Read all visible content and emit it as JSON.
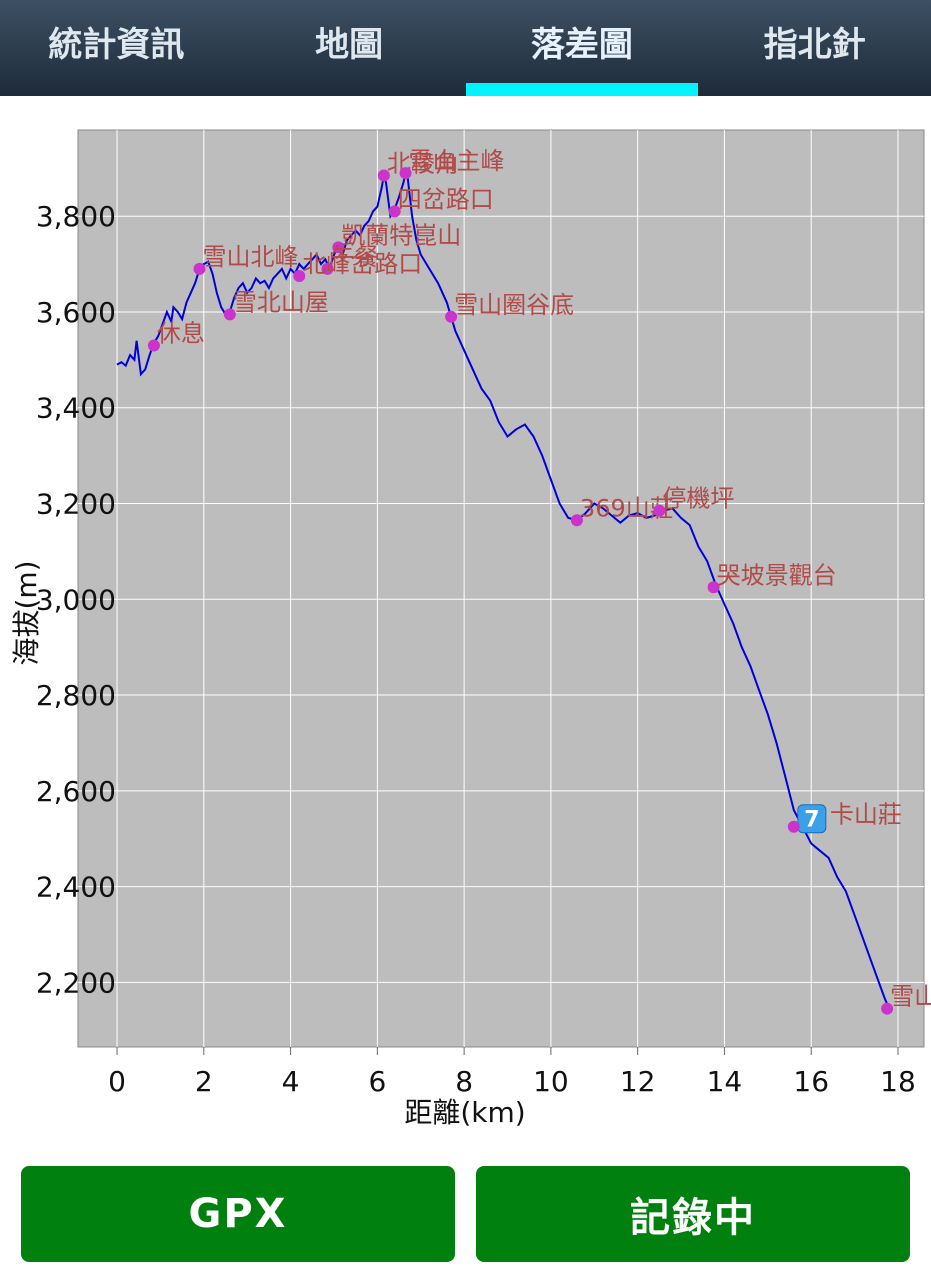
{
  "tabs": [
    {
      "label": "統計資訊",
      "active": false
    },
    {
      "label": "地圖",
      "active": false
    },
    {
      "label": "落差圖",
      "active": true
    },
    {
      "label": "指北針",
      "active": false
    }
  ],
  "colors": {
    "tab_indicator": "#00f4ff",
    "button": "#00800f",
    "plot_bg": "#bdbdbd",
    "line": "#0000dd",
    "marker": "#cc33cc",
    "marker_label": "#b24a4a"
  },
  "buttons": {
    "gpx": "GPX",
    "record": "記錄中"
  },
  "chart_data": {
    "type": "line",
    "xlabel": "距離(km)",
    "ylabel": "海拔(m)",
    "xlim": [
      -0.9,
      18.6
    ],
    "ylim": [
      2065,
      3980
    ],
    "xticks": [
      "0",
      "2",
      "4",
      "6",
      "8",
      "10",
      "12",
      "14",
      "16",
      "18"
    ],
    "yticks": [
      "2,200",
      "2,400",
      "2,600",
      "2,800",
      "3,000",
      "3,200",
      "3,400",
      "3,600",
      "3,800"
    ],
    "grid": true,
    "series": [
      {
        "x": [
          0.0,
          0.1,
          0.2,
          0.3,
          0.4,
          0.45,
          0.55,
          0.65,
          0.75,
          0.85,
          0.95,
          1.05,
          1.15,
          1.25,
          1.3,
          1.4,
          1.5,
          1.6,
          1.7,
          1.8,
          1.9,
          2.0,
          2.1,
          2.2,
          2.3,
          2.4,
          2.5,
          2.6,
          2.7,
          2.8,
          2.9,
          3.0,
          3.1,
          3.2,
          3.3,
          3.4,
          3.5,
          3.6,
          3.7,
          3.8,
          3.9,
          4.0,
          4.1,
          4.2,
          4.3,
          4.4,
          4.5,
          4.6,
          4.7,
          4.8,
          4.9,
          5.0,
          5.1,
          5.2,
          5.3,
          5.4,
          5.5,
          5.6,
          5.7,
          5.8,
          5.9,
          6.0,
          6.1,
          6.15,
          6.2,
          6.3,
          6.4,
          6.5,
          6.6,
          6.65,
          6.7,
          6.8,
          6.9,
          7.0,
          7.2,
          7.4,
          7.6,
          7.7,
          7.8,
          8.0,
          8.2,
          8.4,
          8.6,
          8.8,
          9.0,
          9.2,
          9.4,
          9.6,
          9.8,
          10.0,
          10.2,
          10.4,
          10.6,
          10.8,
          11.0,
          11.2,
          11.4,
          11.6,
          11.8,
          12.0,
          12.2,
          12.4,
          12.6,
          12.8,
          13.0,
          13.2,
          13.4,
          13.6,
          13.8,
          14.0,
          14.2,
          14.4,
          14.6,
          14.8,
          15.0,
          15.2,
          15.4,
          15.6,
          15.8,
          16.0,
          16.2,
          16.4,
          16.6,
          16.8,
          17.0,
          17.2,
          17.4,
          17.6,
          17.7,
          17.75
        ],
        "y": [
          3490,
          3495,
          3488,
          3510,
          3500,
          3540,
          3470,
          3480,
          3510,
          3535,
          3550,
          3575,
          3600,
          3580,
          3610,
          3600,
          3585,
          3620,
          3640,
          3660,
          3690,
          3700,
          3705,
          3680,
          3640,
          3610,
          3595,
          3600,
          3630,
          3650,
          3660,
          3640,
          3650,
          3670,
          3660,
          3665,
          3650,
          3670,
          3680,
          3690,
          3670,
          3690,
          3680,
          3700,
          3690,
          3700,
          3710,
          3720,
          3700,
          3710,
          3690,
          3720,
          3735,
          3720,
          3750,
          3760,
          3770,
          3760,
          3780,
          3790,
          3810,
          3820,
          3860,
          3885,
          3870,
          3800,
          3815,
          3840,
          3870,
          3890,
          3880,
          3800,
          3750,
          3720,
          3690,
          3660,
          3620,
          3590,
          3560,
          3520,
          3480,
          3440,
          3415,
          3370,
          3340,
          3355,
          3365,
          3340,
          3300,
          3250,
          3200,
          3170,
          3165,
          3180,
          3200,
          3190,
          3175,
          3160,
          3175,
          3180,
          3170,
          3175,
          3185,
          3190,
          3170,
          3155,
          3110,
          3080,
          3030,
          2990,
          2950,
          2900,
          2860,
          2810,
          2760,
          2700,
          2630,
          2560,
          2525,
          2490,
          2475,
          2460,
          2420,
          2390,
          2340,
          2290,
          2240,
          2190,
          2165,
          2155
        ]
      }
    ],
    "waypoints": [
      {
        "label": "休息",
        "x": 0.85,
        "y": 3530
      },
      {
        "label": "雪山北峰",
        "x": 1.9,
        "y": 3690
      },
      {
        "label": "雪北山屋",
        "x": 2.6,
        "y": 3595
      },
      {
        "label": "北稜角",
        "x": 6.15,
        "y": 3885
      },
      {
        "label": "雪山主峰",
        "x": 6.65,
        "y": 3890
      },
      {
        "label": "四岔路口",
        "x": 6.4,
        "y": 3810
      },
      {
        "label": "凱蘭特崑山",
        "x": 5.1,
        "y": 3735
      },
      {
        "label": "午餐",
        "x": 4.85,
        "y": 3690
      },
      {
        "label": "北峰岔路口",
        "x": 4.2,
        "y": 3675
      },
      {
        "label": "雪山圈谷底",
        "x": 7.7,
        "y": 3590
      },
      {
        "label": "369山莊",
        "x": 10.6,
        "y": 3165
      },
      {
        "label": "停機坪",
        "x": 12.5,
        "y": 3185
      },
      {
        "label": "哭坡景觀台",
        "x": 13.75,
        "y": 3025
      },
      {
        "label": "7",
        "x": 15.6,
        "y": 2525
      },
      {
        "label": "卡山莊",
        "x": 15.6,
        "y": 2525
      },
      {
        "label": "雪山登山口",
        "x": 17.75,
        "y": 2145
      }
    ]
  }
}
